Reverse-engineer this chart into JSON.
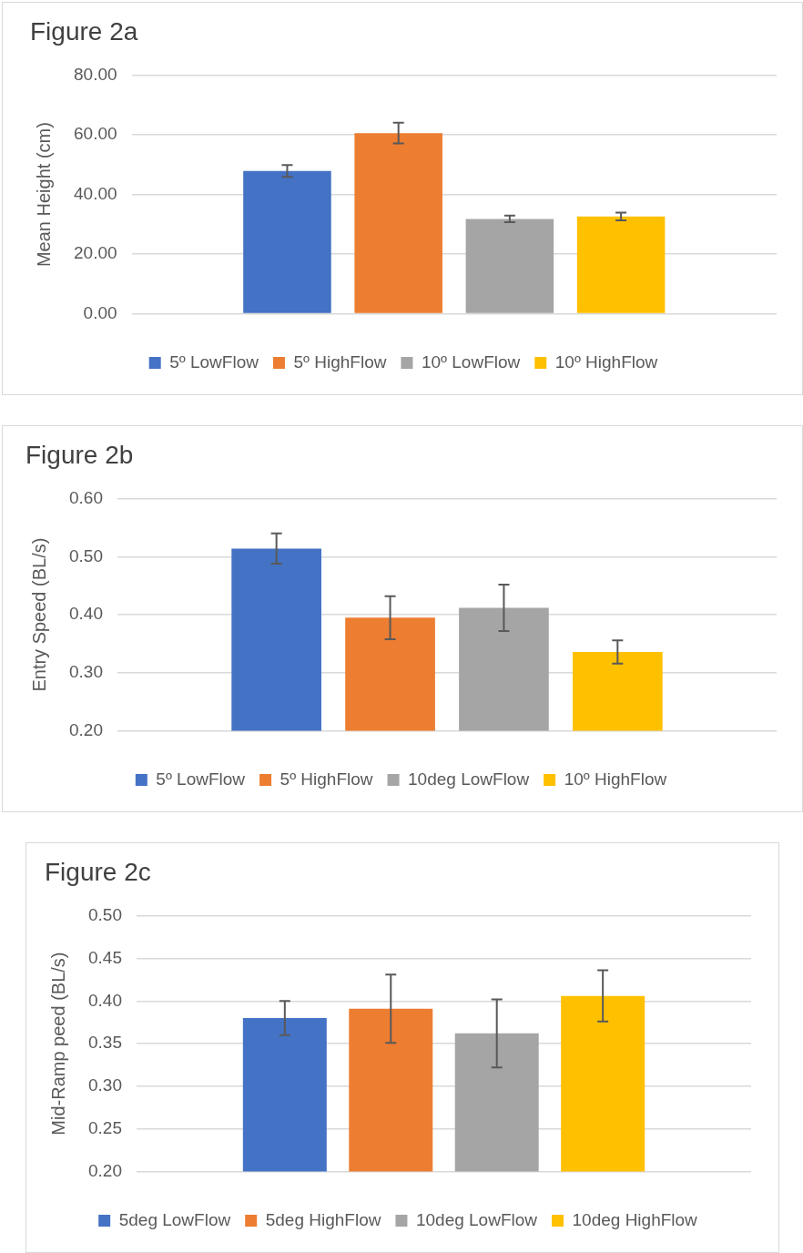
{
  "chart_data": [
    {
      "type": "bar",
      "title": "Figure 2a",
      "ylabel": "Mean Height (cm)",
      "categories": [
        null
      ],
      "ylim": [
        0,
        80
      ],
      "yticks": [
        {
          "value": 0,
          "label": "0.00"
        },
        {
          "value": 20,
          "label": "20.00"
        },
        {
          "value": 40,
          "label": "40.00"
        },
        {
          "value": 60,
          "label": "60.00"
        },
        {
          "value": 80,
          "label": "80.00"
        }
      ],
      "grid": "y",
      "legend": "bottom",
      "series": [
        {
          "name": "5º LowFlow",
          "color": "#4472c4",
          "values": [
            47.9
          ],
          "errors": [
            2
          ]
        },
        {
          "name": "5º HighFlow",
          "color": "#ed7d31",
          "values": [
            60.6
          ],
          "errors": [
            3.5
          ]
        },
        {
          "name": "10º LowFlow",
          "color": "#a5a5a5",
          "values": [
            31.8
          ],
          "errors": [
            1.1
          ]
        },
        {
          "name": "10º HighFlow",
          "color": "#ffc000",
          "values": [
            32.6
          ],
          "errors": [
            1.3
          ]
        }
      ]
    },
    {
      "type": "bar",
      "title": "Figure 2b",
      "ylabel": "Entry Speed (BL/s)",
      "categories": [
        null
      ],
      "ylim": [
        0.2,
        0.6
      ],
      "yticks": [
        {
          "value": 0.2,
          "label": "0.20"
        },
        {
          "value": 0.3,
          "label": "0.30"
        },
        {
          "value": 0.4,
          "label": "0.40"
        },
        {
          "value": 0.5,
          "label": "0.50"
        },
        {
          "value": 0.6,
          "label": "0.60"
        }
      ],
      "grid": "y",
      "legend": "bottom",
      "series": [
        {
          "name": "5º LowFlow",
          "color": "#4472c4",
          "values": [
            0.514
          ],
          "errors": [
            0.026
          ]
        },
        {
          "name": "5º HighFlow",
          "color": "#ed7d31",
          "values": [
            0.395
          ],
          "errors": [
            0.037
          ]
        },
        {
          "name": "10deg LowFlow",
          "color": "#a5a5a5",
          "values": [
            0.412
          ],
          "errors": [
            0.04
          ]
        },
        {
          "name": "10º HighFlow",
          "color": "#ffc000",
          "values": [
            0.336
          ],
          "errors": [
            0.02
          ]
        }
      ]
    },
    {
      "type": "bar",
      "title": "Figure 2c",
      "ylabel": "Mid-Ramp peed (BL/s)",
      "categories": [
        null
      ],
      "ylim": [
        0.2,
        0.5
      ],
      "yticks": [
        {
          "value": 0.2,
          "label": "0.20"
        },
        {
          "value": 0.25,
          "label": "0.25"
        },
        {
          "value": 0.3,
          "label": "0.30"
        },
        {
          "value": 0.35,
          "label": "0.35"
        },
        {
          "value": 0.4,
          "label": "0.40"
        },
        {
          "value": 0.45,
          "label": "0.45"
        },
        {
          "value": 0.5,
          "label": "0.50"
        }
      ],
      "grid": "y",
      "legend": "bottom",
      "series": [
        {
          "name": "5deg LowFlow",
          "color": "#4472c4",
          "values": [
            0.38
          ],
          "errors": [
            0.02
          ]
        },
        {
          "name": "5deg HighFlow",
          "color": "#ed7d31",
          "values": [
            0.391
          ],
          "errors": [
            0.04
          ]
        },
        {
          "name": "10deg LowFlow",
          "color": "#a5a5a5",
          "values": [
            0.362
          ],
          "errors": [
            0.04
          ]
        },
        {
          "name": "10deg HighFlow",
          "color": "#ffc000",
          "values": [
            0.406
          ],
          "errors": [
            0.03
          ]
        }
      ]
    }
  ]
}
